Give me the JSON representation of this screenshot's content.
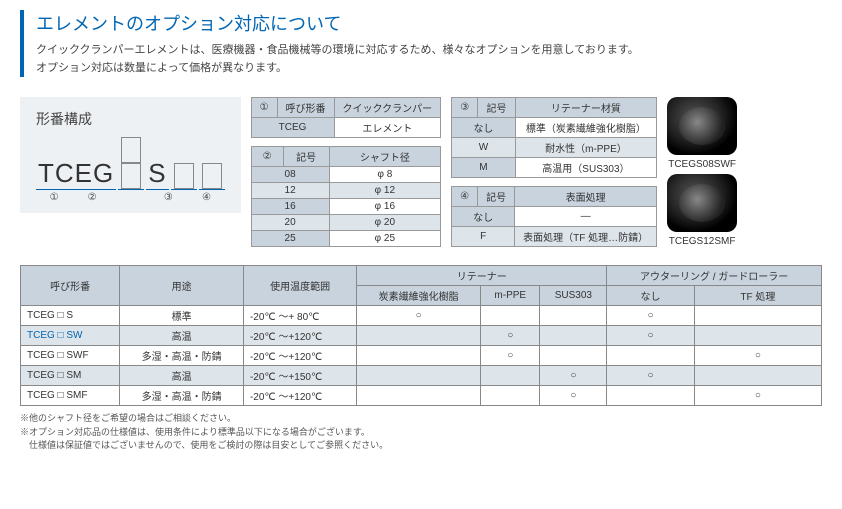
{
  "header": {
    "title": "エレメントのオプション対応について",
    "line1": "クイッククランパーエレメントは、医療機器・食品機械等の環境に対応するため、様々なオプションを用意しております。",
    "line2": "オプション対応は数量によって価格が異なります。"
  },
  "model": {
    "title": "形番構成",
    "base": "TCEG",
    "mid": "S",
    "nums": [
      "①",
      "②",
      "③",
      "④"
    ]
  },
  "t1": {
    "h1": "①",
    "h2": "呼び形番",
    "h3": "クイッククランパー",
    "r1c1": "TCEG",
    "r1c2": "エレメント"
  },
  "t2": {
    "h1": "②",
    "h2": "記号",
    "h3": "シャフト径",
    "rows": [
      {
        "c1": "08",
        "c2": "φ 8"
      },
      {
        "c1": "12",
        "c2": "φ 12"
      },
      {
        "c1": "16",
        "c2": "φ 16"
      },
      {
        "c1": "20",
        "c2": "φ 20"
      },
      {
        "c1": "25",
        "c2": "φ 25"
      }
    ]
  },
  "t3": {
    "h1": "③",
    "h2": "記号",
    "h3": "リテーナー材質",
    "rows": [
      {
        "c1": "なし",
        "c2": "標準（炭素繊維強化樹脂）"
      },
      {
        "c1": "W",
        "c2": "耐水性（m-PPE）"
      },
      {
        "c1": "M",
        "c2": "高温用（SUS303）"
      }
    ]
  },
  "t4": {
    "h1": "④",
    "h2": "記号",
    "h3": "表面処理",
    "rows": [
      {
        "c1": "なし",
        "c2": "—"
      },
      {
        "c1": "F",
        "c2": "表面処理（TF 処理…防錆）"
      }
    ]
  },
  "products": {
    "p1": "TCEGS08SWF",
    "p2": "TCEGS12SMF"
  },
  "main": {
    "h_yobi": "呼び形番",
    "h_youto": "用途",
    "h_temp": "使用温度範囲",
    "h_retainer": "リテーナー",
    "h_outer": "アウターリング / ガードローラー",
    "h_r1": "炭素繊維強化樹脂",
    "h_r2": "m-PPE",
    "h_r3": "SUS303",
    "h_o1": "なし",
    "h_o2": "TF 処理",
    "rows": [
      {
        "model": "TCEG □ S",
        "use": "標準",
        "temp": "-20℃ ～+ 80℃",
        "r1": "○",
        "r2": "",
        "r3": "",
        "o1": "○",
        "o2": "",
        "hl": false
      },
      {
        "model": "TCEG □ SW",
        "use": "高温",
        "temp": "-20℃ ～+120℃",
        "r1": "",
        "r2": "○",
        "r3": "",
        "o1": "○",
        "o2": "",
        "hl": true
      },
      {
        "model": "TCEG □ SWF",
        "use": "多湿・高温・防錆",
        "temp": "-20℃ ～+120℃",
        "r1": "",
        "r2": "○",
        "r3": "",
        "o1": "",
        "o2": "○",
        "hl": false
      },
      {
        "model": "TCEG □ SM",
        "use": "高温",
        "temp": "-20℃ ～+150℃",
        "r1": "",
        "r2": "",
        "r3": "○",
        "o1": "○",
        "o2": "",
        "hl": false
      },
      {
        "model": "TCEG □ SMF",
        "use": "多湿・高温・防錆",
        "temp": "-20℃ ～+120℃",
        "r1": "",
        "r2": "",
        "r3": "○",
        "o1": "",
        "o2": "○",
        "hl": false
      }
    ]
  },
  "notes": {
    "n1": "※他のシャフト径をご希望の場合はご相談ください。",
    "n2": "※オプション対応品の仕様値は、使用条件により標準品以下になる場合がございます。",
    "n3": "　仕様値は保証値ではございませんので、使用をご検討の際は目安としてご参照ください。"
  },
  "colors": {
    "accent": "#0066b3",
    "th_bg": "#c8d3de",
    "alt_bg": "#dde4ea"
  }
}
